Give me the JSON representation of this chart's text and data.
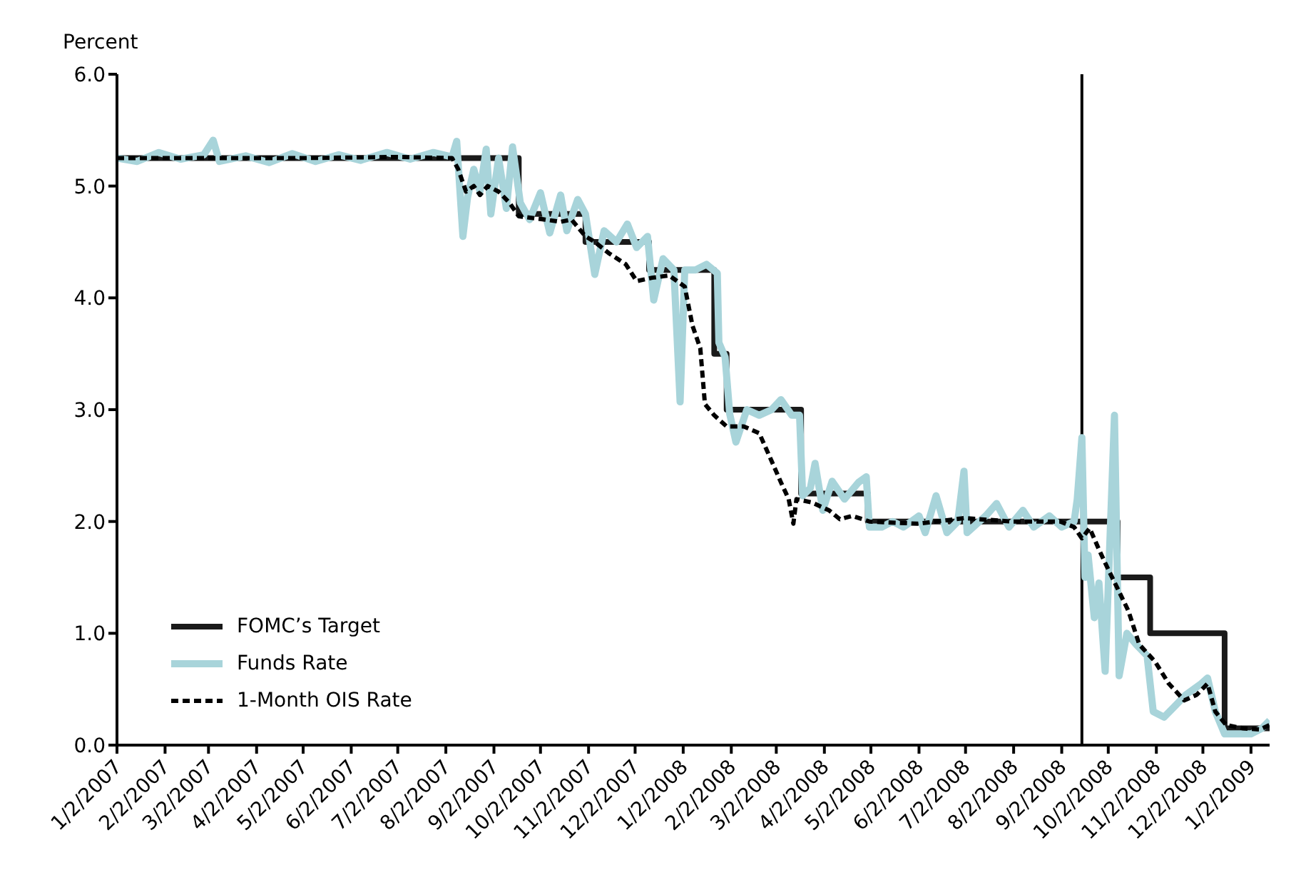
{
  "chart_data": {
    "type": "line",
    "ylabel": "Percent",
    "xlim": [
      "2007-01-02",
      "2009-01-14"
    ],
    "xticks": [
      {
        "value": "2007-01-02",
        "label": "1/2/2007"
      },
      {
        "value": "2007-02-02",
        "label": "2/2/2007"
      },
      {
        "value": "2007-03-02",
        "label": "3/2/2007"
      },
      {
        "value": "2007-04-02",
        "label": "4/2/2007"
      },
      {
        "value": "2007-05-02",
        "label": "5/2/2007"
      },
      {
        "value": "2007-06-02",
        "label": "6/2/2007"
      },
      {
        "value": "2007-07-02",
        "label": "7/2/2007"
      },
      {
        "value": "2007-08-02",
        "label": "8/2/2007"
      },
      {
        "value": "2007-09-02",
        "label": "9/2/2007"
      },
      {
        "value": "2007-10-02",
        "label": "10/2/2007"
      },
      {
        "value": "2007-11-02",
        "label": "11/2/2007"
      },
      {
        "value": "2007-12-02",
        "label": "12/2/2007"
      },
      {
        "value": "2008-01-02",
        "label": "1/2/2008"
      },
      {
        "value": "2008-02-02",
        "label": "2/2/2008"
      },
      {
        "value": "2008-03-02",
        "label": "3/2/2008"
      },
      {
        "value": "2008-04-02",
        "label": "4/2/2008"
      },
      {
        "value": "2008-05-02",
        "label": "5/2/2008"
      },
      {
        "value": "2008-06-02",
        "label": "6/2/2008"
      },
      {
        "value": "2008-07-02",
        "label": "7/2/2008"
      },
      {
        "value": "2008-08-02",
        "label": "8/2/2008"
      },
      {
        "value": "2008-09-02",
        "label": "9/2/2008"
      },
      {
        "value": "2008-10-02",
        "label": "10/2/2008"
      },
      {
        "value": "2008-11-02",
        "label": "11/2/2008"
      },
      {
        "value": "2008-12-02",
        "label": "12/2/2008"
      },
      {
        "value": "2009-01-02",
        "label": "1/2/2009"
      }
    ],
    "ylim": [
      0,
      6
    ],
    "yticks": [
      {
        "value": 0,
        "label": "0.0"
      },
      {
        "value": 1,
        "label": "1.0"
      },
      {
        "value": 2,
        "label": "2.0"
      },
      {
        "value": 3,
        "label": "3.0"
      },
      {
        "value": 4,
        "label": "4.0"
      },
      {
        "value": 5,
        "label": "5.0"
      },
      {
        "value": 6,
        "label": "6.0"
      }
    ],
    "grid": false,
    "legend": "bottom left",
    "marker": "none",
    "ref_lines": [
      {
        "axis": "x",
        "value": "2008-09-15",
        "color": "#000000"
      }
    ],
    "series": [
      {
        "name": "FOMC’s Target",
        "type": "step",
        "color": "#1a1a1a",
        "line_style": "solid",
        "x": [
          "2007-01-02",
          "2007-09-18",
          "2007-10-31",
          "2007-12-11",
          "2008-01-22",
          "2008-01-30",
          "2008-03-18",
          "2008-04-30",
          "2008-10-08",
          "2008-10-29",
          "2008-12-16",
          "2009-01-14"
        ],
        "values": [
          5.25,
          4.75,
          4.5,
          4.25,
          3.5,
          3,
          2.25,
          2,
          1.5,
          1,
          0.15,
          0.15
        ]
      },
      {
        "name": "Funds Rate",
        "type": "line",
        "color": "#a8d4da",
        "line_style": "solid",
        "x": [
          "2007-01-02",
          "2007-01-15",
          "2007-01-29",
          "2007-02-12",
          "2007-02-27",
          "2007-03-05",
          "2007-03-09",
          "2007-03-26",
          "2007-04-10",
          "2007-04-25",
          "2007-05-10",
          "2007-05-25",
          "2007-06-08",
          "2007-06-25",
          "2007-07-10",
          "2007-07-25",
          "2007-08-06",
          "2007-08-09",
          "2007-08-13",
          "2007-08-16",
          "2007-08-20",
          "2007-08-24",
          "2007-08-28",
          "2007-08-31",
          "2007-09-05",
          "2007-09-10",
          "2007-09-14",
          "2007-09-19",
          "2007-09-25",
          "2007-10-02",
          "2007-10-08",
          "2007-10-15",
          "2007-10-19",
          "2007-10-26",
          "2007-10-31",
          "2007-11-06",
          "2007-11-12",
          "2007-11-20",
          "2007-11-27",
          "2007-12-03",
          "2007-12-10",
          "2007-12-14",
          "2007-12-20",
          "2007-12-27",
          "2007-12-31",
          "2008-01-03",
          "2008-01-10",
          "2008-01-17",
          "2008-01-24",
          "2008-01-25",
          "2008-01-29",
          "2008-02-01",
          "2008-02-05",
          "2008-02-12",
          "2008-02-20",
          "2008-02-28",
          "2008-03-05",
          "2008-03-12",
          "2008-03-17",
          "2008-03-19",
          "2008-03-24",
          "2008-03-27",
          "2008-04-01",
          "2008-04-07",
          "2008-04-15",
          "2008-04-24",
          "2008-04-29",
          "2008-05-01",
          "2008-05-09",
          "2008-05-16",
          "2008-05-23",
          "2008-06-02",
          "2008-06-06",
          "2008-06-13",
          "2008-06-20",
          "2008-06-27",
          "2008-07-01",
          "2008-07-03",
          "2008-07-15",
          "2008-07-22",
          "2008-07-30",
          "2008-08-08",
          "2008-08-15",
          "2008-08-25",
          "2008-09-02",
          "2008-09-10",
          "2008-09-12",
          "2008-09-15",
          "2008-09-17",
          "2008-09-19",
          "2008-09-23",
          "2008-09-26",
          "2008-09-30",
          "2008-10-06",
          "2008-10-09",
          "2008-10-14",
          "2008-10-20",
          "2008-10-27",
          "2008-10-31",
          "2008-11-07",
          "2008-11-14",
          "2008-11-21",
          "2008-12-01",
          "2008-12-05",
          "2008-12-10",
          "2008-12-16",
          "2008-12-24",
          "2009-01-02",
          "2009-01-09",
          "2009-01-14"
        ],
        "values": [
          5.25,
          5.22,
          5.3,
          5.24,
          5.28,
          5.41,
          5.22,
          5.27,
          5.21,
          5.29,
          5.22,
          5.28,
          5.23,
          5.3,
          5.24,
          5.3,
          5.26,
          5.4,
          4.55,
          4.9,
          5.15,
          4.95,
          5.33,
          4.75,
          5.25,
          4.8,
          5.35,
          4.85,
          4.7,
          4.94,
          4.58,
          4.92,
          4.6,
          4.88,
          4.75,
          4.21,
          4.6,
          4.5,
          4.66,
          4.45,
          4.55,
          3.98,
          4.35,
          4.25,
          3.07,
          4.25,
          4.25,
          4.3,
          4.22,
          3.6,
          3.47,
          2.96,
          2.71,
          3,
          2.95,
          3,
          3.09,
          2.95,
          2.95,
          2.23,
          2.3,
          2.52,
          2.1,
          2.36,
          2.2,
          2.35,
          2.4,
          1.95,
          1.95,
          2,
          1.95,
          2.05,
          1.9,
          2.23,
          1.9,
          2,
          2.45,
          1.9,
          2.05,
          2.16,
          1.95,
          2.1,
          1.95,
          2.05,
          1.95,
          2,
          2.2,
          2.75,
          1.5,
          1.7,
          1.14,
          1.45,
          0.66,
          2.95,
          0.62,
          1,
          0.9,
          0.8,
          0.3,
          0.25,
          0.35,
          0.45,
          0.55,
          0.6,
          0.3,
          0.1,
          0.1,
          0.1,
          0.15,
          0.22
        ]
      },
      {
        "name": "1-Month OIS Rate",
        "type": "line",
        "color": "#000000",
        "line_style": "dashed",
        "x": [
          "2007-01-02",
          "2007-03-01",
          "2007-05-01",
          "2007-07-01",
          "2007-08-06",
          "2007-08-10",
          "2007-08-15",
          "2007-08-20",
          "2007-08-24",
          "2007-08-29",
          "2007-09-05",
          "2007-09-12",
          "2007-09-18",
          "2007-10-05",
          "2007-10-15",
          "2007-10-22",
          "2007-10-31",
          "2007-11-06",
          "2007-11-15",
          "2007-11-26",
          "2007-12-03",
          "2007-12-13",
          "2007-12-24",
          "2008-01-03",
          "2008-01-08",
          "2008-01-13",
          "2008-01-16",
          "2008-01-22",
          "2008-01-30",
          "2008-02-10",
          "2008-02-20",
          "2008-02-28",
          "2008-03-05",
          "2008-03-10",
          "2008-03-13",
          "2008-03-15",
          "2008-03-25",
          "2008-04-05",
          "2008-04-12",
          "2008-04-20",
          "2008-05-01",
          "2008-06-01",
          "2008-07-01",
          "2008-08-01",
          "2008-09-01",
          "2008-09-10",
          "2008-09-15",
          "2008-09-20",
          "2008-09-26",
          "2008-10-01",
          "2008-10-08",
          "2008-10-15",
          "2008-10-22",
          "2008-11-01",
          "2008-11-10",
          "2008-11-20",
          "2008-11-28",
          "2008-12-05",
          "2008-12-10",
          "2008-12-17",
          "2008-12-28",
          "2009-01-08",
          "2009-01-14"
        ],
        "values": [
          5.25,
          5.25,
          5.25,
          5.26,
          5.25,
          5.15,
          4.95,
          5,
          4.92,
          5,
          4.95,
          4.85,
          4.73,
          4.7,
          4.68,
          4.7,
          4.55,
          4.5,
          4.4,
          4.3,
          4.15,
          4.18,
          4.2,
          4.1,
          3.75,
          3.55,
          3.05,
          2.95,
          2.85,
          2.85,
          2.79,
          2.54,
          2.35,
          2.2,
          1.98,
          2.2,
          2.17,
          2.1,
          2.02,
          2.05,
          2,
          1.98,
          2.03,
          2,
          2,
          1.95,
          1.85,
          1.94,
          1.75,
          1.6,
          1.4,
          1.2,
          0.9,
          0.75,
          0.55,
          0.4,
          0.45,
          0.55,
          0.3,
          0.18,
          0.15,
          0.14,
          0.18
        ]
      }
    ]
  }
}
